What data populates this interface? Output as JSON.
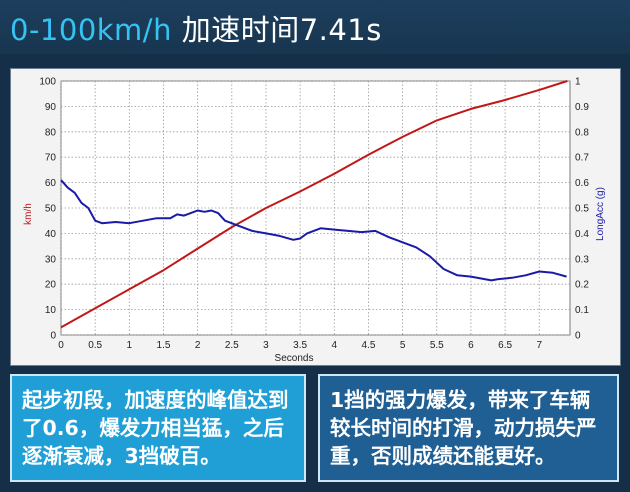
{
  "header": {
    "title_accent": "0-100km/h",
    "title_rest": "加速时间7.41s"
  },
  "colors": {
    "speed_series": "#c01818",
    "accel_series": "#1a1aa8",
    "left_note_bg": "#1f9fd6",
    "right_note_bg": "#1f5f93"
  },
  "notes": {
    "left": "起步初段，加速度的峰值达到了0.6，爆发力相当猛，之后逐渐衰减，3挡破百。",
    "right": "1挡的强力爆发，带来了车辆较长时间的打滑，动力损失严重，否则成绩还能更好。"
  },
  "chart_data": {
    "type": "line",
    "title": "",
    "xlabel": "Seconds",
    "ylabel": "km/h",
    "y2label": "LongAcc (g)",
    "xlim": [
      0,
      7.45
    ],
    "ylim": [
      0,
      100
    ],
    "y2lim": [
      0,
      1
    ],
    "x_ticks": [
      "0",
      "0.5",
      "1",
      "1.5",
      "2",
      "2.5",
      "3",
      "3.5",
      "4",
      "4.5",
      "5",
      "5.5",
      "6",
      "6.5",
      "7"
    ],
    "y_ticks": [
      "0",
      "10",
      "20",
      "30",
      "40",
      "50",
      "60",
      "70",
      "80",
      "90",
      "100"
    ],
    "y2_ticks": [
      "0",
      "0.1",
      "0.2",
      "0.3",
      "0.4",
      "0.5",
      "0.6",
      "0.7",
      "0.8",
      "0.9",
      "1"
    ],
    "grid": true,
    "series": [
      {
        "axis": "left",
        "color": "#c01818",
        "x": [
          0,
          0.5,
          1,
          1.5,
          2,
          2.5,
          3,
          3.5,
          4,
          4.5,
          5,
          5.5,
          6,
          6.5,
          7,
          7.41
        ],
        "y": [
          3,
          10.5,
          18,
          25.5,
          34,
          42.5,
          50,
          56.5,
          63.5,
          71,
          78,
          84.5,
          89,
          92.5,
          96.5,
          100
        ]
      },
      {
        "axis": "right",
        "color": "#1a1aa8",
        "x": [
          0,
          0.1,
          0.2,
          0.3,
          0.4,
          0.5,
          0.6,
          0.8,
          1.0,
          1.2,
          1.4,
          1.6,
          1.7,
          1.8,
          1.9,
          2.0,
          2.1,
          2.2,
          2.3,
          2.4,
          2.6,
          2.8,
          3.0,
          3.2,
          3.4,
          3.5,
          3.6,
          3.8,
          4.0,
          4.2,
          4.4,
          4.6,
          4.8,
          5.0,
          5.2,
          5.4,
          5.6,
          5.8,
          6.0,
          6.2,
          6.3,
          6.4,
          6.6,
          6.8,
          7.0,
          7.2,
          7.4
        ],
        "y": [
          0.61,
          0.58,
          0.56,
          0.52,
          0.5,
          0.45,
          0.44,
          0.445,
          0.44,
          0.45,
          0.46,
          0.46,
          0.475,
          0.47,
          0.48,
          0.49,
          0.485,
          0.49,
          0.48,
          0.45,
          0.43,
          0.41,
          0.4,
          0.39,
          0.375,
          0.38,
          0.4,
          0.42,
          0.415,
          0.41,
          0.405,
          0.41,
          0.385,
          0.365,
          0.345,
          0.31,
          0.26,
          0.235,
          0.23,
          0.22,
          0.215,
          0.22,
          0.225,
          0.235,
          0.25,
          0.245,
          0.23
        ]
      }
    ]
  }
}
